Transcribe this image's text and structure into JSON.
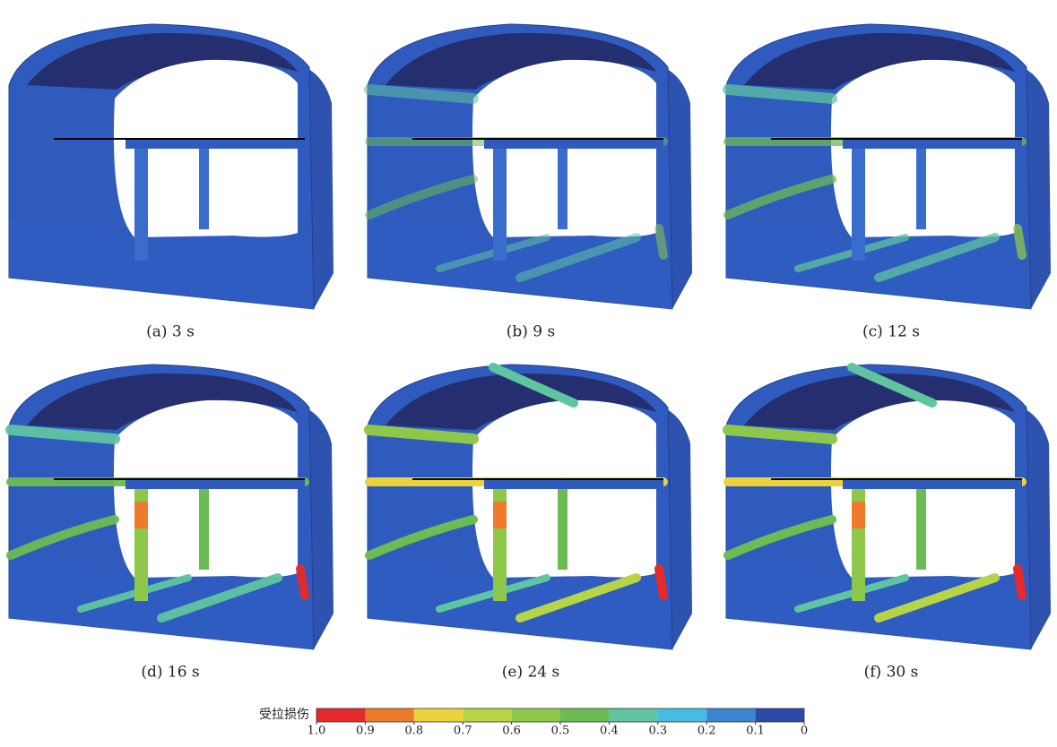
{
  "panels": [
    {
      "caption": "(a) 3 s"
    },
    {
      "caption": "(b) 9 s"
    },
    {
      "caption": "(c) 12 s"
    },
    {
      "caption": "(d) 16 s"
    },
    {
      "caption": "(e) 24 s"
    },
    {
      "caption": "(f) 30 s"
    }
  ],
  "colorbar": {
    "label": "受拉损伤",
    "colors": [
      "#e42a2a",
      "#ef7a2c",
      "#ecd23c",
      "#b6d445",
      "#8ec84b",
      "#6bbc52",
      "#5fc4a0",
      "#45bde2",
      "#3a86d2",
      "#2b4aa8"
    ],
    "ticks": [
      {
        "value": 1,
        "label": "1.0"
      },
      0.9,
      0.8,
      0.7,
      0.6,
      0.5,
      0.4,
      0.3,
      0.2,
      0.1,
      0
    ]
  }
}
